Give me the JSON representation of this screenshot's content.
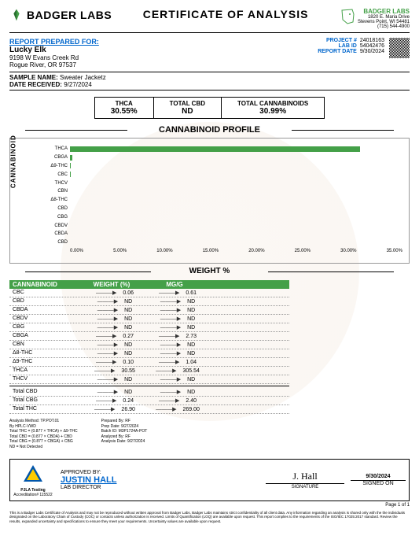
{
  "header": {
    "company": "BADGER LABS",
    "title": "CERTIFICATE OF ANALYSIS",
    "lab_name": "BADGER LABS",
    "lab_addr1": "1820 E. Maria Drive",
    "lab_addr2": "Stevens Point, WI 54481",
    "lab_phone": "(715) 544-4900",
    "logo_color": "#44a048"
  },
  "report": {
    "label": "REPORT PREPARED FOR:",
    "client": "Lucky Elk",
    "addr1": "9198 W Evans Creek Rd",
    "addr2": "Rogue River, OR 97537",
    "project_lbl": "PROJECT #",
    "project": "24018163",
    "labid_lbl": "LAB ID",
    "labid": "54042476",
    "date_lbl": "REPORT DATE",
    "date": "9/30/2024"
  },
  "sample": {
    "name_lbl": "SAMPLE NAME:",
    "name": "Sweater Jacketz",
    "recv_lbl": "DATE RECEIVED:",
    "recv": "9/27/2024"
  },
  "summary": [
    {
      "t": "THCA",
      "v": "30.55%"
    },
    {
      "t": "TOTAL CBD",
      "v": "ND"
    },
    {
      "t": "TOTAL CANNABINOIDS",
      "v": "30.99%"
    }
  ],
  "chart": {
    "title": "CANNABINOID PROFILE",
    "ylabel": "CANNABINOID",
    "xlabel": "WEIGHT %",
    "xmax": 35,
    "ticks": [
      "0.00%",
      "5.00%",
      "10.00%",
      "15.00%",
      "20.00%",
      "25.00%",
      "30.00%",
      "35.00%"
    ],
    "rows": [
      {
        "l": "THCA",
        "v": 30.55
      },
      {
        "l": "CBGA",
        "v": 0.27
      },
      {
        "l": "Δ9-THC",
        "v": 0.1
      },
      {
        "l": "CBC",
        "v": 0.06
      },
      {
        "l": "THCV",
        "v": 0
      },
      {
        "l": "CBN",
        "v": 0
      },
      {
        "l": "Δ8-THC",
        "v": 0
      },
      {
        "l": "CBD",
        "v": 0
      },
      {
        "l": "CBG",
        "v": 0
      },
      {
        "l": "CBDV",
        "v": 0
      },
      {
        "l": "CBDA",
        "v": 0
      },
      {
        "l": "CBD",
        "v": 0
      }
    ]
  },
  "table": {
    "h1": "CANNABINOID",
    "h2": "WEIGHT (%)",
    "h3": "MG/G",
    "rows": [
      {
        "c": "CBC",
        "w": "0.06",
        "m": "0.61"
      },
      {
        "c": "CBD",
        "w": "ND",
        "m": "ND"
      },
      {
        "c": "CBDA",
        "w": "ND",
        "m": "ND"
      },
      {
        "c": "CBDV",
        "w": "ND",
        "m": "ND"
      },
      {
        "c": "CBG",
        "w": "ND",
        "m": "ND"
      },
      {
        "c": "CBGA",
        "w": "0.27",
        "m": "2.73"
      },
      {
        "c": "CBN",
        "w": "ND",
        "m": "ND"
      },
      {
        "c": "Δ8-THC",
        "w": "ND",
        "m": "ND"
      },
      {
        "c": "Δ9-THC",
        "w": "0.10",
        "m": "1.04"
      },
      {
        "c": "THCA",
        "w": "30.55",
        "m": "305.54"
      },
      {
        "c": "THCV",
        "w": "ND",
        "m": "ND"
      }
    ],
    "totals": [
      {
        "c": "Total CBD",
        "w": "ND",
        "m": "ND"
      },
      {
        "c": "Total CBG",
        "w": "0.24",
        "m": "2.40"
      },
      {
        "c": "Total THC",
        "w": "26.90",
        "m": "269.00"
      }
    ]
  },
  "footnotes": {
    "left": [
      "Analysis Method: TP.POT.01",
      "By HPLC-VWD",
      "Total THC = (0.877 × THCA) + Δ9-THC",
      "Total CBD = (0.877 × CBDA) + CBD",
      "Total CBG = (0.877 × CBGA) + CBG",
      "ND = Not Detected"
    ],
    "right": [
      {
        "l": "Prepared By:",
        "v": "RF"
      },
      {
        "l": "Prep Date:",
        "v": "9/27/2024"
      },
      {
        "l": "Batch ID:",
        "v": "M3P1724A-POT"
      },
      {
        "l": "Analyzed By:",
        "v": "RF"
      },
      {
        "l": "Analysis Date:",
        "v": "9/27/2024"
      }
    ]
  },
  "approval": {
    "accred": "Accreditation# 115522",
    "pjla": "PJLA Testing",
    "label": "APPROVED BY:",
    "name": "JUSTIN HALL",
    "title": "LAB DIRECTOR",
    "sig": "SIGNATURE",
    "date": "9/30/2024",
    "signed": "SIGNED ON"
  },
  "disclaimer": "This is a Badger Labs Certificate of Analysis and may not be reproduced without written approval from Badger Labs. Badger Labs maintains strict confidentiality of all client data. Any information regarding an analysis is shared only with the the individuals designated on the Laboratory Chain of Custody (COC) or contacts unless authorization is received. Limits of Quantification (LOQ) are available upon request. This report complies to the requirements of the ISO/IEC 17025:2017 standard. Review the results, expanded uncertainty and specifications to ensure they meet your requirements. Uncertainty values are available upon request.",
  "page": "Page 1 of 1"
}
